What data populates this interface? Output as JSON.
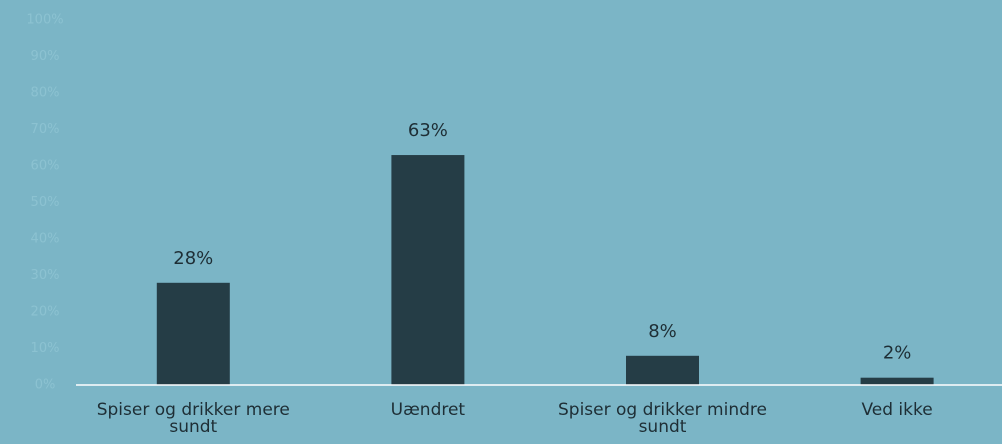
{
  "chart_data": {
    "type": "bar",
    "categories": [
      "Spiser og drikker mere sundt",
      "Uændret",
      "Spiser og drikker mindre sundt",
      "Ved ikke"
    ],
    "values": [
      28,
      63,
      8,
      2
    ],
    "value_labels": [
      "28%",
      "63%",
      "8%",
      "2%"
    ],
    "color": "#253d46",
    "ylim": [
      0,
      100
    ],
    "yticks": [
      {
        "value": 0,
        "label": "0%"
      },
      {
        "value": 10,
        "label": "10%"
      },
      {
        "value": 20,
        "label": "20%"
      },
      {
        "value": 30,
        "label": "30%"
      },
      {
        "value": 40,
        "label": "40%"
      },
      {
        "value": 50,
        "label": "50%"
      },
      {
        "value": 60,
        "label": "60%"
      },
      {
        "value": 70,
        "label": "70%"
      },
      {
        "value": 80,
        "label": "80%"
      },
      {
        "value": 90,
        "label": "90%"
      },
      {
        "value": 100,
        "label": "100%"
      }
    ],
    "grid": false
  }
}
